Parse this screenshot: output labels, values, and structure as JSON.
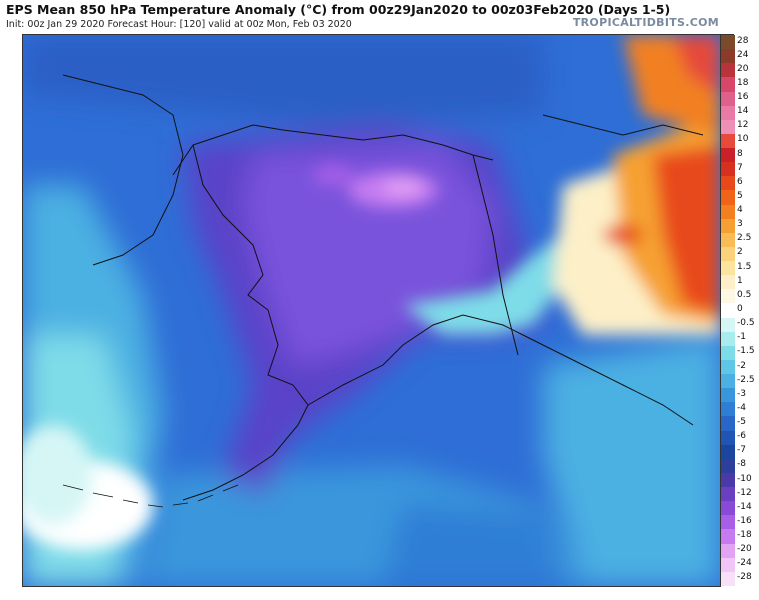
{
  "header": {
    "title": "EPS Mean 850 hPa Temperature Anomaly (°C) from 00z29Jan2020 to 00z03Feb2020 (Days 1-5)",
    "subtitle": "Init: 00z Jan 29 2020   Forecast Hour: [120]   valid at 00z Mon, Feb 03 2020",
    "brand": "TROPICALTIDBITS.COM"
  },
  "colorbar": {
    "labels": [
      "28",
      "24",
      "20",
      "18",
      "16",
      "14",
      "12",
      "10",
      "8",
      "7",
      "6",
      "5",
      "4",
      "3",
      "2.5",
      "2",
      "1.5",
      "1",
      "0.5",
      "0",
      "-0.5",
      "-1",
      "-1.5",
      "-2",
      "-2.5",
      "-3",
      "-4",
      "-5",
      "-6",
      "-7",
      "-8",
      "-10",
      "-12",
      "-14",
      "-16",
      "-18",
      "-20",
      "-24",
      "-28"
    ],
    "colors": [
      "#7a4a2a",
      "#8c3a2a",
      "#b8333a",
      "#d6476a",
      "#e0608c",
      "#e87aa5",
      "#ee8fb8",
      "#e64a3a",
      "#c9202a",
      "#d8301e",
      "#e8481a",
      "#ef6418",
      "#f28020",
      "#f6a033",
      "#f8bb55",
      "#fad27a",
      "#fbe3a0",
      "#fdf0c8",
      "#fdf8e6",
      "#ffffff",
      "#d6f6f6",
      "#a8ecef",
      "#7edce8",
      "#5ec7e6",
      "#4bb0e2",
      "#3a96dc",
      "#2f7ed6",
      "#2866c8",
      "#1f55b5",
      "#1a469e",
      "#2c3f9a",
      "#4a3aa8",
      "#6a3fc0",
      "#8a4ad8",
      "#a85fe8",
      "#c67cf0",
      "#e2a3f4",
      "#f1c6f6",
      "#f8e0f8"
    ]
  },
  "map": {
    "region_colors": {
      "ocean_southeast": "#2f66cf",
      "ocean_south": "#3a8ad8",
      "bering": "#2e6ed6",
      "arctic": "#2c5fc6",
      "alaska_interior": "#6a48d8",
      "alaska_core": "#8a5ae2",
      "alaska_cold_spot": "#d28cf0",
      "gulf_coast_cyan": "#7edce8",
      "canada_warm": "#f6a033",
      "canada_hot": "#e64a3a",
      "canada_pale": "#fdf0c8",
      "sw_cyan": "#a8ecef"
    }
  }
}
